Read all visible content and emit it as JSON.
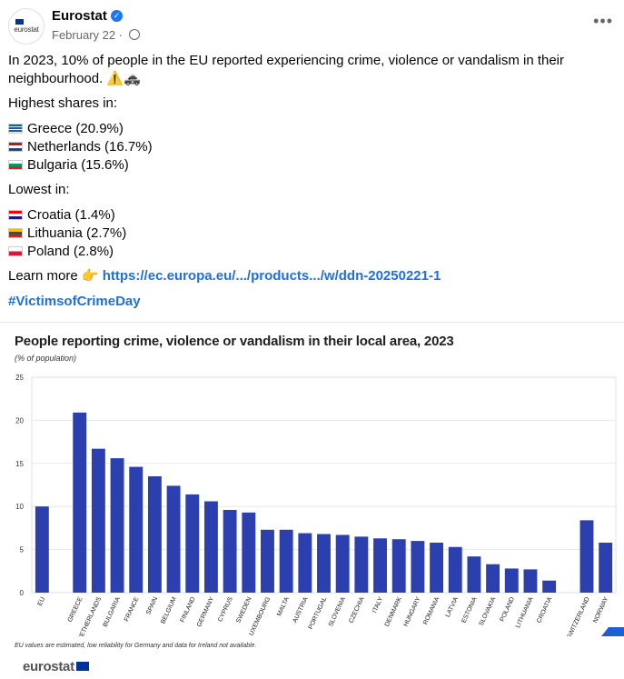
{
  "post": {
    "author": "Eurostat",
    "avatar_text": "eurostat",
    "date": "February 22",
    "separator": "·",
    "more_label": "•••",
    "intro": "In 2023, 10% of people in the EU reported experiencing crime, violence or vandalism in their neighbourhood. ⚠️🚓",
    "highest_label": "Highest shares in:",
    "highest": [
      {
        "flag": "gr",
        "text": "Greece (20.9%)"
      },
      {
        "flag": "nl",
        "text": "Netherlands (16.7%)"
      },
      {
        "flag": "bg",
        "text": "Bulgaria (15.6%)"
      }
    ],
    "lowest_label": "Lowest in:",
    "lowest": [
      {
        "flag": "hr",
        "text": "Croatia (1.4%)"
      },
      {
        "flag": "lt",
        "text": "Lithuania (2.7%)"
      },
      {
        "flag": "pl",
        "text": "Poland (2.8%)"
      }
    ],
    "learn_more": "Learn more 👉",
    "link": "https://ec.europa.eu/.../products.../w/ddn-20250221-1",
    "hashtag": "#VictimsofCrimeDay"
  },
  "chart_data": {
    "type": "bar",
    "title": "People reporting crime, violence or vandalism in their local area, 2023",
    "subtitle": "(% of population)",
    "categories": [
      "EU",
      "GREECE",
      "NETHERLANDS",
      "BULGARIA",
      "FRANCE",
      "SPAIN",
      "BELGIUM",
      "FINLAND",
      "GERMANY",
      "CYPRUS",
      "SWEDEN",
      "LUXEMBOURG",
      "MALTA",
      "AUSTRIA",
      "PORTUGAL",
      "SLOVENIA",
      "CZECHIA",
      "ITALY",
      "DENMARK",
      "HUNGARY",
      "ROMANIA",
      "LATVIA",
      "ESTONIA",
      "SLOVAKIA",
      "POLAND",
      "LITHUANIA",
      "CROATIA",
      "SWITZERLAND",
      "NORWAY"
    ],
    "values": [
      10.0,
      20.9,
      16.7,
      15.6,
      14.6,
      13.5,
      12.4,
      11.4,
      10.6,
      9.6,
      9.3,
      7.3,
      7.3,
      6.9,
      6.8,
      6.7,
      6.5,
      6.3,
      6.2,
      6.0,
      5.8,
      5.3,
      4.2,
      3.3,
      2.8,
      2.7,
      1.4,
      8.4,
      5.8
    ],
    "gaps_after": [
      "EU",
      "CROATIA"
    ],
    "y_ticks": [
      0,
      5,
      10,
      15,
      20,
      25
    ],
    "ylim": [
      0,
      25
    ],
    "grid": true,
    "bar_color": "#2b3fae",
    "note": "EU values are estimated, low reliability for Germany and data for Ireland not available.",
    "brand": "eurostat"
  }
}
